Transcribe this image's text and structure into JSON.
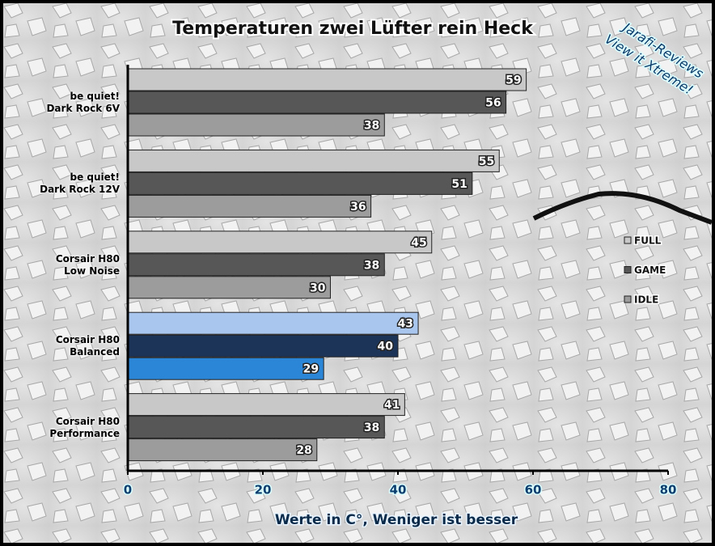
{
  "chart_data": {
    "type": "hbar",
    "title": "Temperaturen zwei Lüfter rein Heck",
    "watermark": [
      "Jarafi-Reviews",
      "View it Xtreme!"
    ],
    "x_label": "Werte in C°, Weniger ist besser",
    "categories": [
      "be quiet!\nDark Rock 6V",
      "be quiet!\nDark Rock 12V",
      "Corsair H80\nLow Noise",
      "Corsair H80\nBalanced",
      "Corsair H80\nPerformance"
    ],
    "series": [
      {
        "name": "FULL",
        "color": "#c8c8c8",
        "colors": [
          "#c8c8c8",
          "#c8c8c8",
          "#c8c8c8",
          "#a9c6ee",
          "#c8c8c8"
        ],
        "values": [
          59,
          55,
          45,
          43,
          41
        ]
      },
      {
        "name": "GAME",
        "color": "#575757",
        "colors": [
          "#575757",
          "#575757",
          "#575757",
          "#1c3458",
          "#575757"
        ],
        "values": [
          56,
          51,
          38,
          40,
          38
        ]
      },
      {
        "name": "IDLE",
        "color": "#9c9c9c",
        "colors": [
          "#9c9c9c",
          "#9c9c9c",
          "#9c9c9c",
          "#2b86d8",
          "#9c9c9c"
        ],
        "values": [
          38,
          36,
          30,
          29,
          28
        ]
      }
    ],
    "xlim": [
      0,
      80
    ],
    "xticks": [
      0,
      20,
      40,
      60,
      80
    ],
    "legend": "right",
    "grid": false
  }
}
